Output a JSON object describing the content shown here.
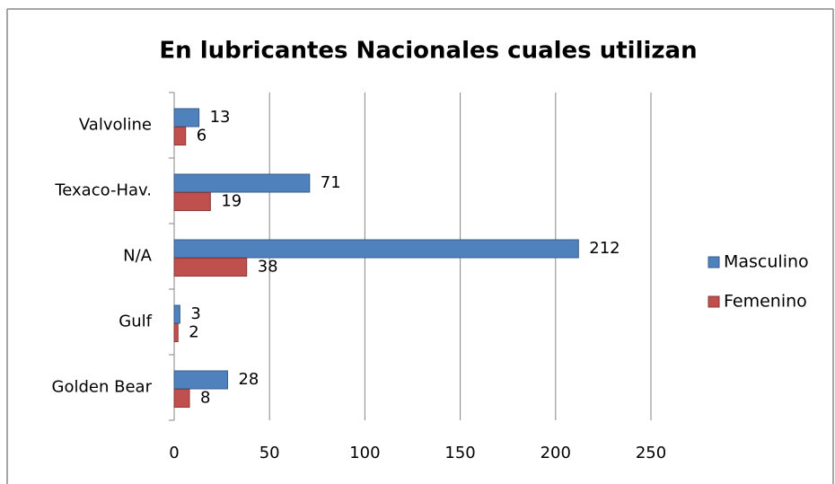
{
  "chart_data": {
    "type": "barh",
    "title": "En lubricantes Nacionales cuales utilizan",
    "categories": [
      "Golden Bear",
      "Gulf",
      "N/A",
      "Texaco-Hav.",
      "Valvoline"
    ],
    "series": [
      {
        "name": "Masculino",
        "color": "#4f81bd",
        "values": [
          28,
          3,
          212,
          71,
          13
        ]
      },
      {
        "name": "Femenino",
        "color": "#c0504d",
        "values": [
          8,
          2,
          38,
          19,
          6
        ]
      }
    ],
    "xlim": [
      0,
      250
    ],
    "xticks": [
      0,
      50,
      100,
      150,
      200,
      250
    ],
    "grid": true,
    "legend": "right"
  }
}
